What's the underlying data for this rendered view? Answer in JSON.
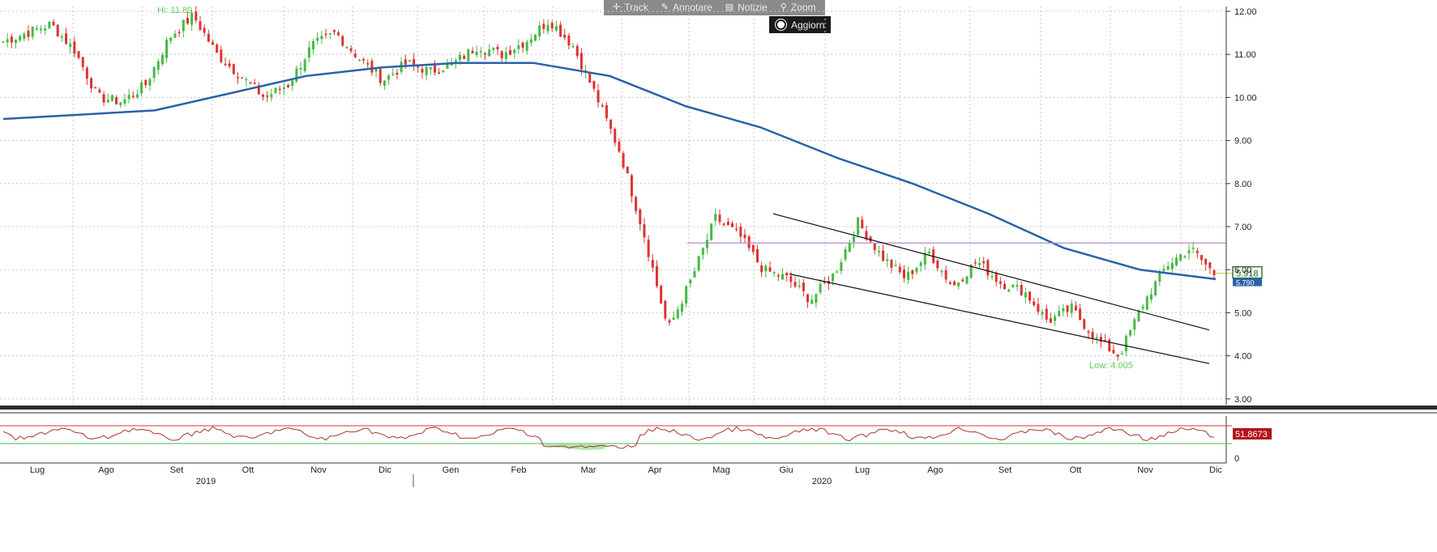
{
  "toolbar": {
    "track_label": "Track",
    "annotate_label": "Annotare",
    "news_label": "Notizie",
    "zoom_label": "Zoom",
    "refresh_label": "Aggiorn"
  },
  "chart_data": [
    {
      "type": "candlestick",
      "y_axis_ticks": [
        "12.00",
        "11.00",
        "10.00",
        "9.00",
        "8.00",
        "7.00",
        "6.00",
        "5.00",
        "4.00",
        "3.00"
      ],
      "ylim": [
        3.0,
        12.0
      ],
      "x_months": [
        "Lug",
        "Ago",
        "Set",
        "Ott",
        "Nov",
        "Dic",
        "Gen",
        "Feb",
        "Mar",
        "Apr",
        "Mag",
        "Giu",
        "Lug",
        "Ago",
        "Set",
        "Ott",
        "Nov",
        "Dic"
      ],
      "x_years": [
        "2019",
        "2020"
      ],
      "grid": true,
      "price_close_approx": [
        11.3,
        11.5,
        11.7,
        11.1,
        10.0,
        9.9,
        10.3,
        11.4,
        11.9,
        11.0,
        10.5,
        10.0,
        10.3,
        11.2,
        11.5,
        10.9,
        10.4,
        10.8,
        10.6,
        10.8,
        11.2,
        11.0,
        11.3,
        11.8,
        11.2,
        10.0,
        8.7,
        6.8,
        4.6,
        5.8,
        7.2,
        6.8,
        6.0,
        5.8,
        5.3,
        5.9,
        7.1,
        6.3,
        5.8,
        6.4,
        5.6,
        6.2,
        5.7,
        5.5,
        4.8,
        5.1,
        4.4,
        4.0,
        5.2,
        6.1,
        6.5,
        5.9
      ],
      "moving_average_approx": [
        9.5,
        9.6,
        9.7,
        10.1,
        10.5,
        10.7,
        10.8,
        10.8,
        10.5,
        9.8,
        9.3,
        8.6,
        8.0,
        7.3,
        6.5,
        6.0,
        5.78
      ],
      "hi_label": "Hi: 11.89",
      "low_label": "Low: 4.005",
      "last_price_label": "5.918",
      "ma_label": "5.790",
      "resistance_level": 6.62,
      "channel_upper": [
        [
          7.3,
          "Giu"
        ],
        [
          4.6,
          "Dic"
        ]
      ],
      "channel_lower": [
        [
          5.9,
          "Giu"
        ],
        [
          3.8,
          "Dic"
        ]
      ],
      "colors": {
        "up": "#44bb44",
        "down": "#dd3333",
        "moving_average": "#2a62a8",
        "resistance": "#b28fc6",
        "hi_low_label": "#5ecb5e"
      }
    },
    {
      "type": "line",
      "name": "RSI",
      "y_axis_ticks": [
        "0"
      ],
      "last_value_label": "51.8673",
      "upper_band_color": "#dd3333",
      "lower_band_color": "#44bb44",
      "line_color": "#a83232"
    }
  ]
}
